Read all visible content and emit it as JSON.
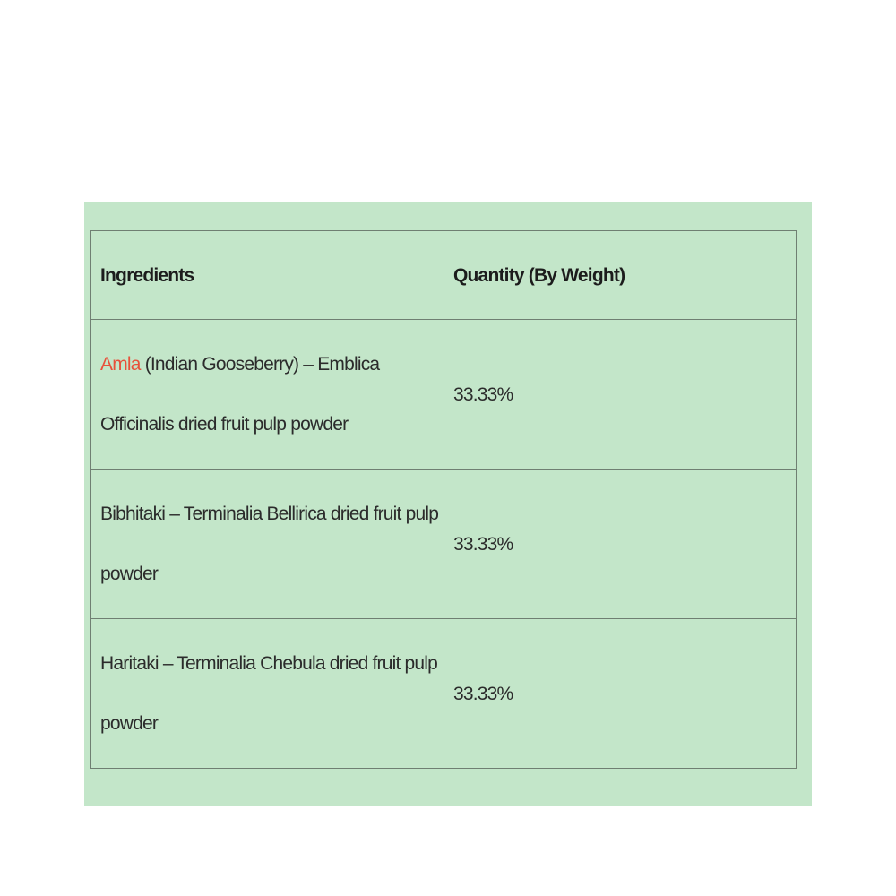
{
  "table": {
    "headers": [
      "Ingredients",
      "Quantity (By Weight)"
    ],
    "rows": [
      {
        "highlight": "Amla",
        "ingredient": " (Indian Gooseberry) – Emblica Officinalis dried fruit pulp powder",
        "quantity": "33.33%"
      },
      {
        "highlight": "",
        "ingredient": "Bibhitaki – Terminalia Bellirica dried fruit pulp powder",
        "quantity": "33.33%"
      },
      {
        "highlight": "",
        "ingredient": "Haritaki – Terminalia Chebula dried fruit pulp powder",
        "quantity": "33.33%"
      }
    ]
  },
  "colors": {
    "background": "#c3e6c9",
    "highlight": "#e8503a",
    "text": "#2b2b2b"
  }
}
